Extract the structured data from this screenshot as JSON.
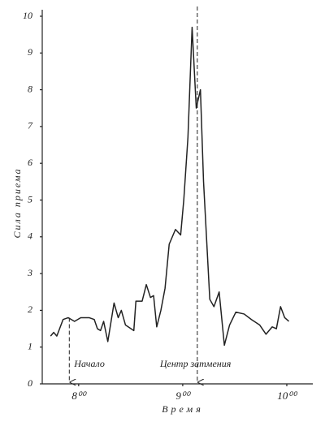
{
  "chart_data": {
    "type": "line",
    "ylabel": "Сила приема",
    "xlabel": "Время",
    "xlim": [
      7.65,
      10.25
    ],
    "ylim": [
      0,
      10
    ],
    "xticks": [
      {
        "value": 8,
        "label": "8⁰⁰"
      },
      {
        "value": 9,
        "label": "9⁰⁰"
      },
      {
        "value": 10,
        "label": "10⁰⁰"
      }
    ],
    "yticks": [
      0,
      1,
      2,
      3,
      4,
      5,
      6,
      7,
      8,
      9,
      10
    ],
    "color": "#222",
    "x": [
      7.73,
      7.76,
      7.79,
      7.85,
      7.9,
      7.96,
      8.02,
      8.1,
      8.15,
      8.18,
      8.21,
      8.24,
      8.28,
      8.34,
      8.38,
      8.41,
      8.45,
      8.53,
      8.55,
      8.61,
      8.65,
      8.69,
      8.72,
      8.75,
      8.79,
      8.83,
      8.87,
      8.93,
      8.98,
      9.01,
      9.05,
      9.09,
      9.13,
      9.17,
      9.2,
      9.26,
      9.3,
      9.35,
      9.4,
      9.45,
      9.51,
      9.59,
      9.66,
      9.74,
      9.8,
      9.86,
      9.9,
      9.94,
      9.98,
      10.02
    ],
    "values": [
      1.3,
      1.4,
      1.3,
      1.75,
      1.8,
      1.7,
      1.8,
      1.8,
      1.75,
      1.5,
      1.45,
      1.7,
      1.15,
      2.2,
      1.8,
      2.0,
      1.6,
      1.45,
      2.25,
      2.25,
      2.7,
      2.35,
      2.4,
      1.55,
      2.0,
      2.6,
      3.8,
      4.2,
      4.05,
      5.0,
      6.7,
      9.7,
      7.5,
      8.0,
      5.5,
      2.3,
      2.1,
      2.5,
      1.05,
      1.6,
      1.95,
      1.9,
      1.75,
      1.6,
      1.35,
      1.55,
      1.5,
      2.1,
      1.8,
      1.7
    ],
    "annotations": [
      {
        "text": "Начало",
        "x": 7.91
      },
      {
        "text": "Центр затмения",
        "x": 9.14
      }
    ]
  }
}
